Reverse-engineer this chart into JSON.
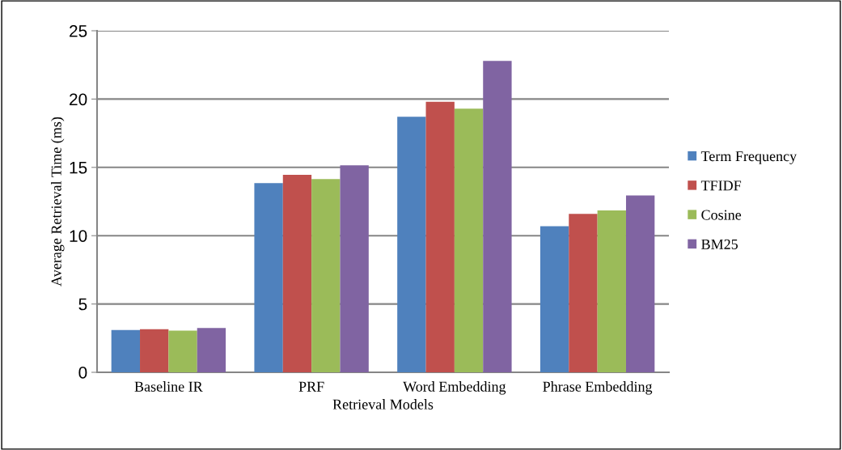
{
  "chart_data": {
    "type": "bar",
    "xlabel": "Retrieval Models",
    "ylabel": "Average Retrieval Time (ms)",
    "categories": [
      "Baseline IR",
      "PRF",
      "Word Embedding",
      "Phrase Embedding"
    ],
    "series": [
      {
        "name": "Term Frequency",
        "color": "#4f81bd",
        "values": [
          3.1,
          13.85,
          18.7,
          10.7
        ]
      },
      {
        "name": "TFIDF",
        "color": "#c0504d",
        "values": [
          3.15,
          14.45,
          19.8,
          11.6
        ]
      },
      {
        "name": "Cosine",
        "color": "#9bbb59",
        "values": [
          3.05,
          14.15,
          19.3,
          11.85
        ]
      },
      {
        "name": "BM25",
        "color": "#8064a2",
        "values": [
          3.25,
          15.15,
          22.8,
          12.95
        ]
      }
    ],
    "ylim": [
      0,
      25
    ],
    "yticks": [
      0,
      5,
      10,
      15,
      20,
      25
    ],
    "grid": "y",
    "legend": "right"
  }
}
